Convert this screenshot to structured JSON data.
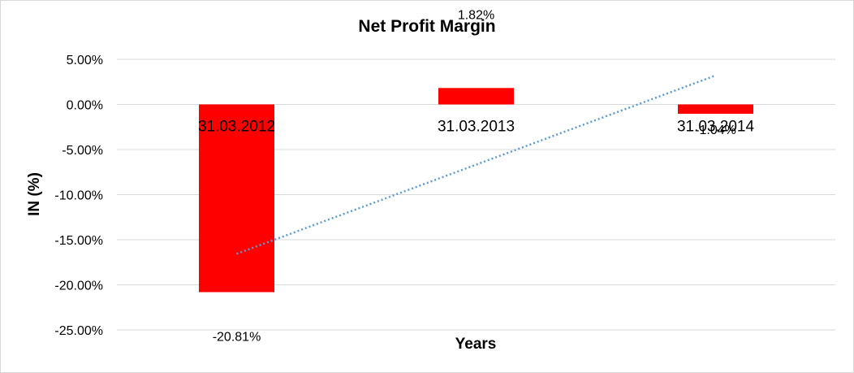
{
  "chart_data": {
    "type": "bar",
    "title": "Net Profit Margin",
    "xlabel": "Years",
    "ylabel": "IN (%)",
    "categories": [
      "31.03.2012",
      "31.03.2013",
      "31.03.2014"
    ],
    "series": [
      {
        "values": [
          -20.81,
          1.82,
          -1.04
        ],
        "color": "#ff0000"
      }
    ],
    "data_labels": [
      "-20.81%",
      "1.82%",
      "-1.04%"
    ],
    "ylim": [
      -25,
      5
    ],
    "y_ticks": [
      5,
      0,
      -5,
      -10,
      -15,
      -20,
      -25
    ],
    "y_tick_labels": [
      "5.00%",
      "0.00%",
      "-5.00%",
      "-10.00%",
      "-15.00%",
      "-20.00%",
      "-25.00%"
    ],
    "trendline": {
      "type": "linear",
      "color": "#5b9bd5",
      "style": "dotted"
    },
    "grid": true,
    "legend": "none"
  }
}
